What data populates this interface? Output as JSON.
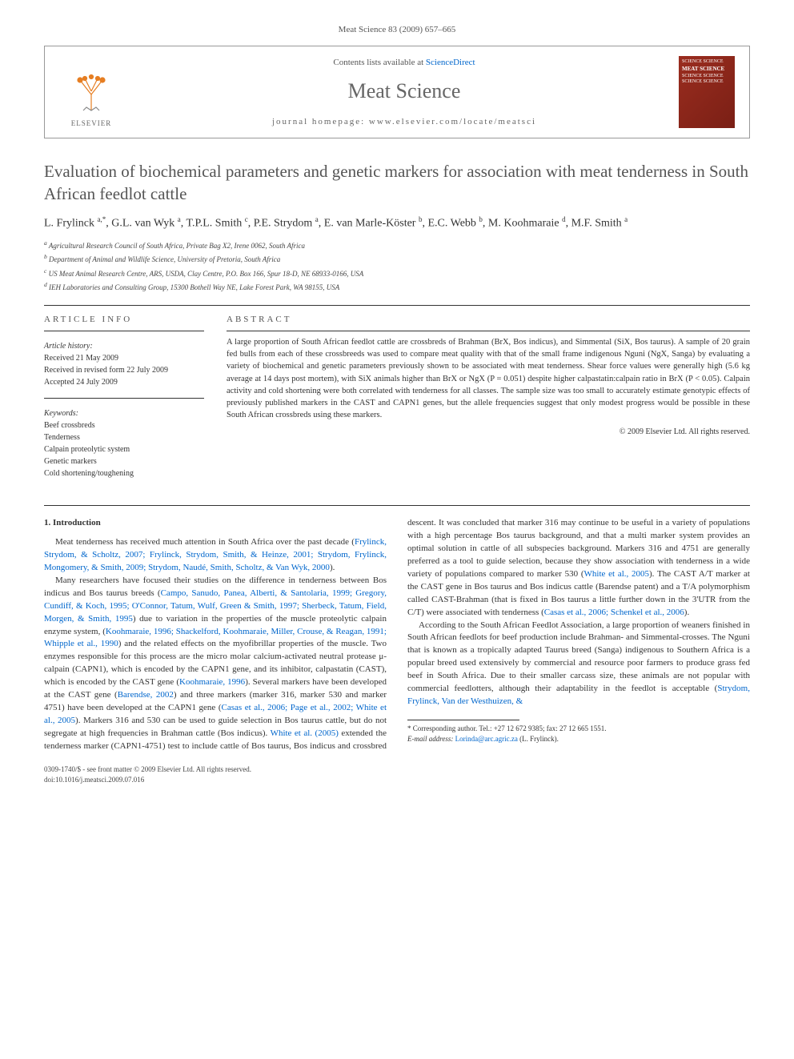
{
  "journal_ref": "Meat Science 83 (2009) 657–665",
  "header": {
    "contents_prefix": "Contents lists available at ",
    "contents_link": "ScienceDirect",
    "journal_name": "Meat Science",
    "homepage_prefix": "journal homepage: ",
    "homepage_url": "www.elsevier.com/locate/meatsci",
    "elsevier_label": "ELSEVIER",
    "cover_text_top": "SCIENCE SCIENCE",
    "cover_text_title": "MEAT SCIENCE",
    "cover_text_bottom": "SCIENCE SCIENCE SCIENCE SCIENCE"
  },
  "title": "Evaluation of biochemical parameters and genetic markers for association with meat tenderness in South African feedlot cattle",
  "authors_html": "L. Frylinck <sup>a,*</sup>, G.L. van Wyk <sup>a</sup>, T.P.L. Smith <sup>c</sup>, P.E. Strydom <sup>a</sup>, E. van Marle-Köster <sup>b</sup>, E.C. Webb <sup>b</sup>, M. Koohmaraie <sup>d</sup>, M.F. Smith <sup>a</sup>",
  "affiliations": [
    "a Agricultural Research Council of South Africa, Private Bag X2, Irene 0062, South Africa",
    "b Department of Animal and Wildlife Science, University of Pretoria, South Africa",
    "c US Meat Animal Research Centre, ARS, USDA, Clay Centre, P.O. Box 166, Spur 18-D, NE 68933-0166, USA",
    "d IEH Laboratories and Consulting Group, 15300 Bothell Way NE, Lake Forest Park, WA 98155, USA"
  ],
  "article_info": {
    "heading": "ARTICLE INFO",
    "history_label": "Article history:",
    "history": [
      "Received 21 May 2009",
      "Received in revised form 22 July 2009",
      "Accepted 24 July 2009"
    ],
    "keywords_label": "Keywords:",
    "keywords": [
      "Beef crossbreds",
      "Tenderness",
      "Calpain proteolytic system",
      "Genetic markers",
      "Cold shortening/toughening"
    ]
  },
  "abstract": {
    "heading": "ABSTRACT",
    "text": "A large proportion of South African feedlot cattle are crossbreds of Brahman (BrX, Bos indicus), and Simmental (SiX, Bos taurus). A sample of 20 grain fed bulls from each of these crossbreeds was used to compare meat quality with that of the small frame indigenous Nguni (NgX, Sanga) by evaluating a variety of biochemical and genetic parameters previously shown to be associated with meat tenderness. Shear force values were generally high (5.6 kg average at 14 days post mortem), with SiX animals higher than BrX or NgX (P = 0.051) despite higher calpastatin:calpain ratio in BrX (P < 0.05). Calpain activity and cold shortening were both correlated with tenderness for all classes. The sample size was too small to accurately estimate genotypic effects of previously published markers in the CAST and CAPN1 genes, but the allele frequencies suggest that only modest progress would be possible in these South African crossbreds using these markers.",
    "copyright": "© 2009 Elsevier Ltd. All rights reserved."
  },
  "body": {
    "section_heading": "1. Introduction",
    "p1_a": "Meat tenderness has received much attention in South Africa over the past decade (",
    "p1_link": "Frylinck, Strydom, & Scholtz, 2007; Frylinck, Strydom, Smith, & Heinze, 2001; Strydom, Frylinck, Mongomery, & Smith, 2009; Strydom, Naudé, Smith, Scholtz, & Van Wyk, 2000",
    "p1_b": ").",
    "p2_a": "Many researchers have focused their studies on the difference in tenderness between Bos indicus and Bos taurus breeds (",
    "p2_link1": "Campo, Sanudo, Panea, Alberti, & Santolaria, 1999; Gregory, Cundiff, & Koch, 1995; O'Connor, Tatum, Wulf, Green & Smith, 1997; Sherbeck, Tatum, Field, Morgen, & Smith, 1995",
    "p2_b": ") due to variation in the properties of the muscle proteolytic calpain enzyme system, (",
    "p2_link2": "Koohmaraie, 1996; Shackelford, Koohmaraie, Miller, Crouse, & Reagan, 1991; Whipple et al., 1990",
    "p2_c": ") and the related effects on the myofibrillar properties of the muscle. Two enzymes responsible for this process are the micro molar calcium-activated neutral protease μ-calpain (CAPN1), which is encoded by the CAPN1 gene, and its inhibitor, calpastatin (CAST), which is encoded by the CAST gene (",
    "p2_link3": "Koohmaraie, 1996",
    "p2_d": "). Several markers have been developed at the CAST gene (",
    "p2_link4": "Barendse, 2002",
    "p2_e": ") and three markers (marker 316, marker 530 and marker 4751) have been developed at the CAPN1 gene (",
    "p2_link5": "Casas et al., 2006; Page et al., 2002; White et al., 2005",
    "p2_f": "). Mark",
    "p2_g": "ers 316 and 530 can be used to guide selection in Bos taurus cattle, but do not segregate at high frequencies in Brahman cattle (Bos indicus). ",
    "p2_link6": "White et al. (2005)",
    "p2_h": " extended the tenderness marker (CAPN1-4751) test to include cattle of Bos taurus, Bos indicus and crossbred descent. It was concluded that marker 316 may continue to be useful in a variety of populations with a high percentage Bos taurus background, and that a multi marker system provides an optimal solution in cattle of all subspecies background. Markers 316 and 4751 are generally preferred as a tool to guide selection, because they show association with tenderness in a wide variety of populations compared to marker 530 (",
    "p2_link7": "White et al., 2005",
    "p2_i": "). The CAST A/T marker at the CAST gene in Bos taurus and Bos indicus cattle (Barendse patent) and a T/A polymorphism called CAST-Brahman (that is fixed in Bos taurus a little further down in the 3'UTR from the C/T) were associated with tenderness (",
    "p2_link8": "Casas et al., 2006; Schenkel et al., 2006",
    "p2_j": ").",
    "p3_a": "According to the South African Feedlot Association, a large proportion of weaners finished in South African feedlots for beef production include Brahman- and Simmental-crosses. The Nguni that is known as a tropically adapted Taurus breed (Sanga) indigenous to Southern Africa is a popular breed used extensively by commercial and resource poor farmers to produce grass fed beef in South Africa. Due to their smaller carcass size, these animals are not popular with commercial feedlotters, although their adaptability in the feedlot is acceptable (",
    "p3_link": "Strydom, Frylinck, Van der Westhuizen, &"
  },
  "corresponding": {
    "line1": "* Corresponding author. Tel.: +27 12 672 9385; fax: 27 12 665 1551.",
    "line2_prefix": "E-mail address: ",
    "email": "Lorinda@arc.agric.za",
    "line2_suffix": " (L. Frylinck)."
  },
  "footer": {
    "left1": "0309-1740/$ - see front matter © 2009 Elsevier Ltd. All rights reserved.",
    "left2": "doi:10.1016/j.meatsci.2009.07.016"
  },
  "colors": {
    "link": "#0066cc",
    "text": "#333333",
    "heading_gray": "#555555",
    "cover_bg": "#9b2d1f"
  }
}
